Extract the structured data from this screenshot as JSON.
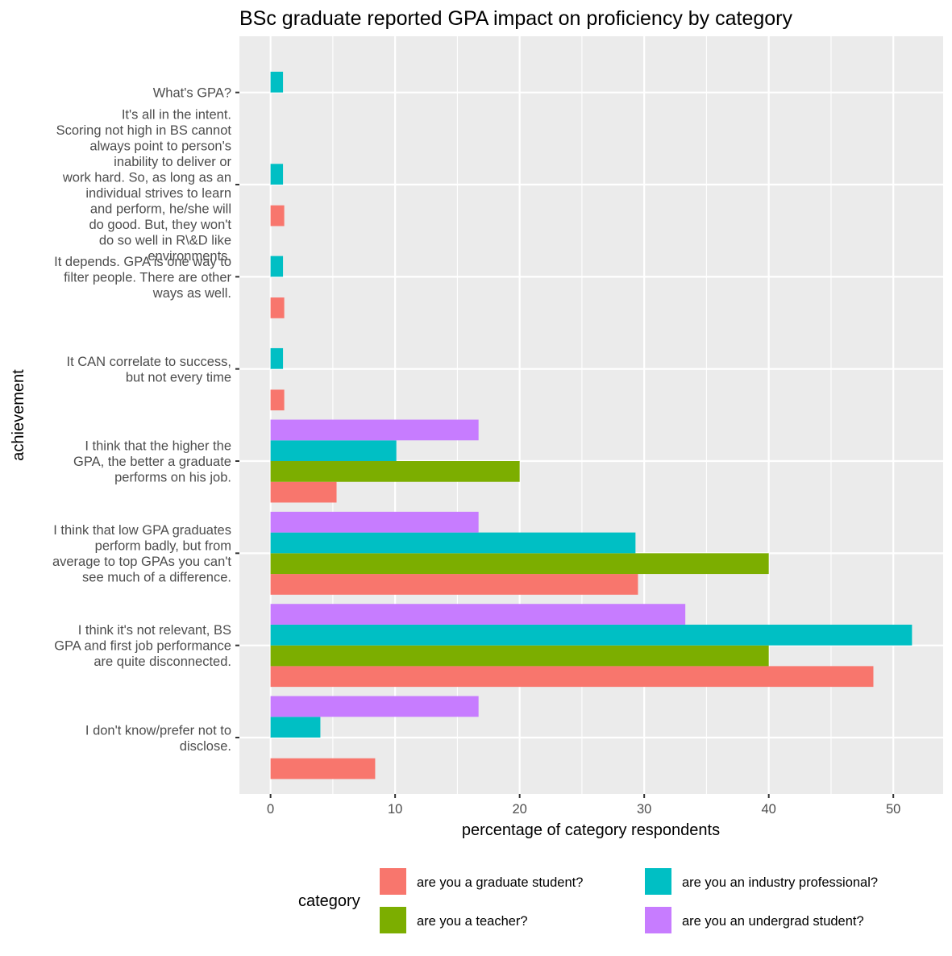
{
  "chart_data": {
    "type": "bar",
    "orientation": "horizontal",
    "title": "BSc graduate reported GPA impact on proficiency by category",
    "xlabel": "percentage of category respondents",
    "ylabel": "achievement",
    "xlim": [
      -2.5,
      54
    ],
    "xticks": [
      0,
      10,
      20,
      30,
      40,
      50
    ],
    "grid": true,
    "legend_position": "bottom",
    "legend_title": "category",
    "categories": [
      [
        "I don't know/prefer not to",
        "disclose."
      ],
      [
        "I think it's not relevant, BS",
        "GPA and first job performance",
        "are quite disconnected."
      ],
      [
        "I think that low GPA graduates",
        "perform badly, but from",
        "average to top GPAs you can't",
        "see much of a difference."
      ],
      [
        "I think that the higher the",
        "GPA, the better a graduate",
        "performs on his job."
      ],
      [
        "It CAN correlate to success,",
        "but not every time"
      ],
      [
        "It depends. GPA is one way to",
        "filter people. There are other",
        "ways as well."
      ],
      [
        "It's all in the intent.",
        "Scoring not high in BS cannot",
        "always point to person's",
        "inability to deliver or",
        "work hard. So, as long as an",
        "individual strives to learn",
        "and perform, he/she will",
        "do good. But, they won't",
        "do so well in R\\&D like",
        "environments."
      ],
      [
        "What's GPA?"
      ]
    ],
    "series": [
      {
        "name": "are you a graduate student?",
        "color": "#F8766D",
        "values": [
          8.4,
          48.4,
          29.5,
          5.3,
          1.1,
          1.1,
          1.1,
          null
        ]
      },
      {
        "name": "are you a teacher?",
        "color": "#7CAE00",
        "values": [
          null,
          40.0,
          40.0,
          20.0,
          null,
          null,
          null,
          null
        ]
      },
      {
        "name": "are you an industry professional?",
        "color": "#00BFC4",
        "values": [
          4.0,
          51.5,
          29.3,
          10.1,
          1.0,
          1.0,
          1.0,
          1.0
        ]
      },
      {
        "name": "are you an undergrad student?",
        "color": "#C77CFF",
        "values": [
          16.7,
          33.3,
          16.7,
          16.7,
          null,
          null,
          null,
          null
        ]
      }
    ]
  }
}
